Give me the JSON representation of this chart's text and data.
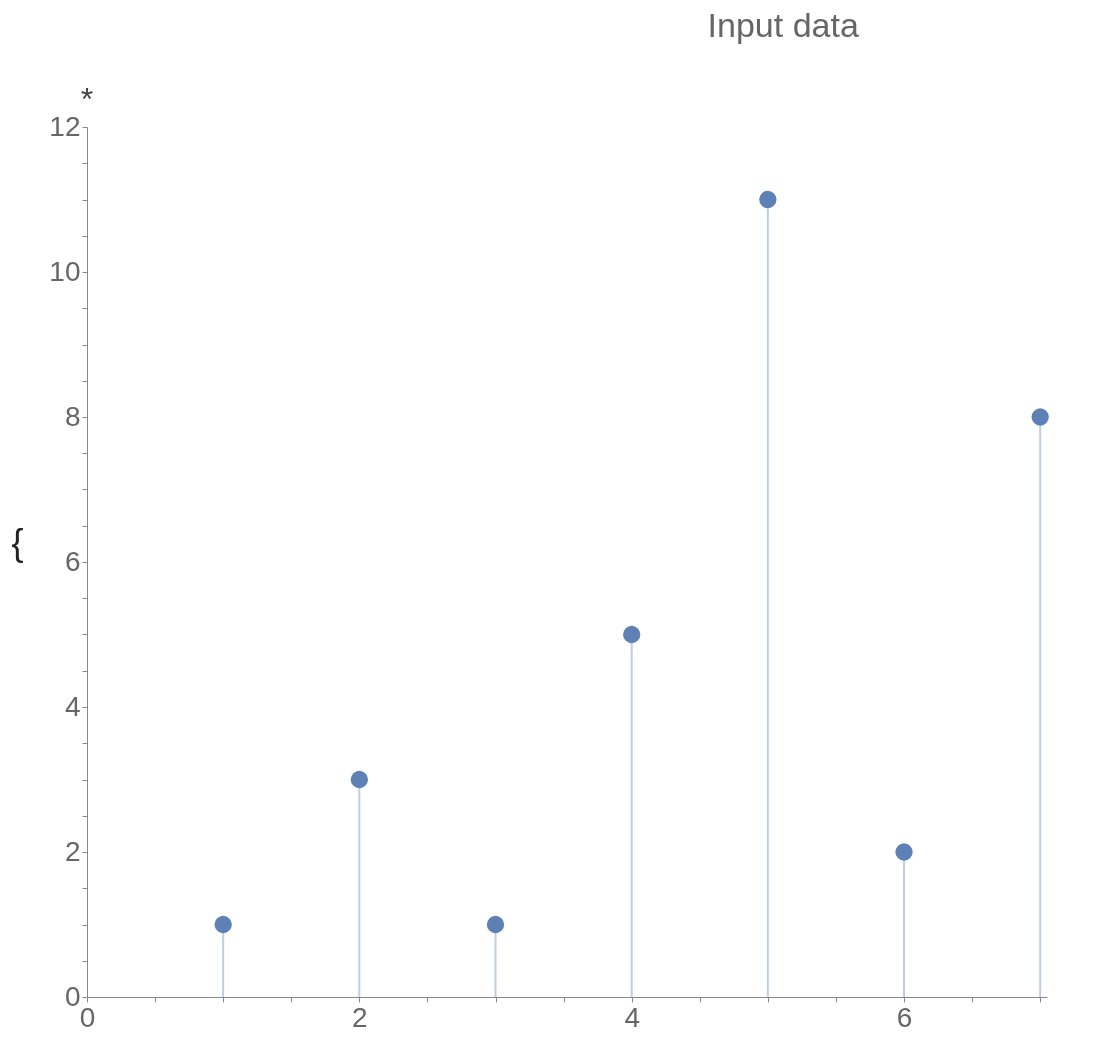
{
  "chart_data": {
    "type": "lollipop",
    "title": "Input data",
    "ylabel": "{",
    "annotations": [
      "*"
    ],
    "x": [
      1,
      2,
      3,
      4,
      5,
      6,
      7
    ],
    "series": [
      {
        "color": "#5e81b5",
        "values": [
          1,
          3,
          1,
          5,
          11,
          2,
          8
        ]
      }
    ],
    "xlim": [
      0,
      7.05
    ],
    "ylim": [
      0,
      12
    ],
    "xticks": [
      0,
      {
        "value": 0.5,
        "label": null
      },
      {
        "value": 1,
        "label": null
      },
      {
        "value": 1.5,
        "label": null
      },
      2,
      {
        "value": 2.5,
        "label": null
      },
      {
        "value": 3,
        "label": null
      },
      {
        "value": 3.5,
        "label": null
      },
      4,
      {
        "value": 4.5,
        "label": null
      },
      {
        "value": 5,
        "label": null
      },
      {
        "value": 5.5,
        "label": null
      },
      6,
      {
        "value": 6.5,
        "label": null
      },
      {
        "value": 7,
        "label": null
      }
    ],
    "yticks": [
      0,
      {
        "value": 0.5,
        "label": null
      },
      {
        "value": 1,
        "label": null
      },
      {
        "value": 1.5,
        "label": null
      },
      2,
      {
        "value": 2.5,
        "label": null
      },
      {
        "value": 3,
        "label": null
      },
      {
        "value": 3.5,
        "label": null
      },
      4,
      {
        "value": 4.5,
        "label": null
      },
      {
        "value": 5,
        "label": null
      },
      {
        "value": 5.5,
        "label": null
      },
      6,
      {
        "value": 6.5,
        "label": null
      },
      {
        "value": 7,
        "label": null
      },
      {
        "value": 7.5,
        "label": null
      },
      8,
      {
        "value": 8.5,
        "label": null
      },
      {
        "value": 9,
        "label": null
      },
      {
        "value": 9.5,
        "label": null
      },
      10,
      {
        "value": 10.5,
        "label": null
      },
      {
        "value": 11,
        "label": null
      },
      {
        "value": 11.5,
        "label": null
      },
      12
    ],
    "marker": "circle",
    "grid": false
  }
}
